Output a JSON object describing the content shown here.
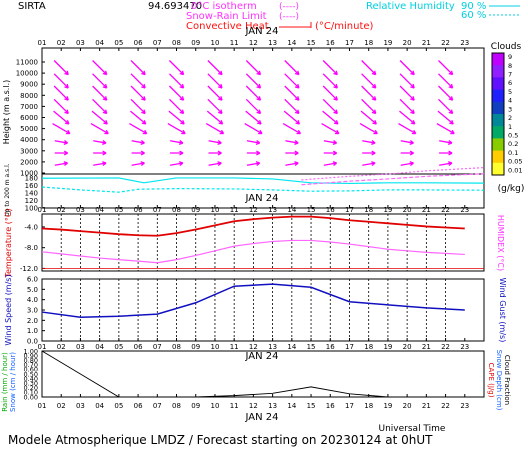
{
  "header": {
    "station": "SIRTA",
    "coord_value": "94.693470",
    "legend_isotherm": "0°C isotherm",
    "legend_isotherm_dash": "(----)",
    "legend_snowrain": "Snow-Rain Limit",
    "legend_snowrain_dash": "(----)",
    "legend_convective": "Convective Heat",
    "legend_convective_unit": "(°C/minute)",
    "legend_rh": "Relative Humidity",
    "rh_90": "90 %",
    "rh_60": "60 %"
  },
  "hours": [
    "01",
    "02",
    "03",
    "04",
    "05",
    "06",
    "07",
    "08",
    "09",
    "10",
    "11",
    "12",
    "13",
    "14",
    "15",
    "16",
    "17",
    "18",
    "19",
    "20",
    "21",
    "22",
    "23"
  ],
  "date_label": "JAN 24",
  "footer": {
    "universal_time": "Universal Time",
    "title": "Modele Atmospherique LMDZ / Forecast starting on 20230124 at 0hUT"
  },
  "colors": {
    "wind_arrow": "#ff00ff",
    "rh": "#00e5ee",
    "temperature": "#e00000",
    "humidex": "#ff66ff",
    "wind_speed": "#1010c0",
    "rain": "#000000",
    "clouds_scale": [
      "#ffff30",
      "#ffcc00",
      "#88cc00",
      "#00aa66",
      "#008899",
      "#1040c0",
      "#2020ff",
      "#6010ff",
      "#9020ff",
      "#c000ff"
    ]
  },
  "chart_data": [
    {
      "type": "heatmap",
      "title": "Clouds / Wind / Relative Humidity",
      "ylabel": "Height (m a.s.l.)",
      "ylabel_lower": "Up to 200 m a.s.l.",
      "yticks_upper": [
        "11000",
        "10000",
        "9000",
        "8000",
        "7000",
        "6000",
        "5000",
        "4000",
        "3000",
        "2000",
        "1000"
      ],
      "yticks_lower": [
        "180",
        "160",
        "140",
        "120",
        "100"
      ],
      "colorbar_title": "Clouds",
      "colorbar_unit": "(g/kg)",
      "colorbar_ticks": [
        "9",
        "8",
        "7",
        "6",
        "5",
        "4",
        "3",
        "2",
        "1",
        "0.5",
        "0.2",
        "0.1",
        "0.05",
        "0.01"
      ],
      "wind_levels_m": [
        10500,
        9300,
        8200,
        7000,
        6000,
        5000,
        3800,
        2800,
        1800
      ],
      "wind_hours": [
        2,
        4,
        6,
        8,
        10,
        12,
        14,
        16,
        18,
        20,
        22
      ],
      "wind_angle_deg": [
        135,
        135,
        135,
        135,
        140,
        150,
        170,
        180,
        190
      ],
      "rh_90_line": {
        "x": [
          0,
          4,
          5.3,
          7,
          10,
          12,
          14,
          16,
          18,
          20,
          23
        ],
        "y": [
          920,
          930,
          780,
          930,
          930,
          900,
          780,
          760,
          780,
          780,
          770
        ]
      },
      "rh_60_line": {
        "x": [
          0,
          2,
          4,
          5,
          7,
          10,
          12,
          14,
          16,
          18,
          20,
          23
        ],
        "y": [
          650,
          560,
          490,
          580,
          600,
          590,
          560,
          520,
          530,
          560,
          560,
          550
        ]
      },
      "isotherm_line": {
        "x": [
          13.5,
          16,
          18,
          20,
          23
        ],
        "y": [
          870,
          980,
          1050,
          1150,
          1250
        ]
      },
      "snowrain_line": {
        "x": [
          13.5,
          16,
          18,
          20,
          23
        ],
        "y": [
          720,
          830,
          900,
          980,
          1060
        ]
      }
    },
    {
      "type": "line",
      "ylabel": "Temperature (°C)",
      "ylabel_right": "HUMIDEX (°C)",
      "yticks": [
        "-4.0",
        "-8.0",
        "-12.0"
      ],
      "ylim": [
        -12.5,
        -1.5
      ],
      "x": [
        1,
        2,
        3,
        4,
        5,
        6,
        7,
        8,
        9,
        10,
        11,
        12,
        13,
        14,
        15,
        16,
        17,
        18,
        19,
        20,
        21,
        22,
        23
      ],
      "series": [
        {
          "name": "Temperature",
          "values": [
            -4.3,
            -4.5,
            -4.8,
            -5.1,
            -5.4,
            -5.6,
            -5.7,
            -5.2,
            -4.5,
            -3.7,
            -2.9,
            -2.5,
            -2.2,
            -2.0,
            -2.0,
            -2.3,
            -2.7,
            -3.0,
            -3.3,
            -3.6,
            -3.9,
            -4.1,
            -4.3
          ]
        },
        {
          "name": "Humidex",
          "values": [
            -8.8,
            -9.2,
            -9.6,
            -10.0,
            -10.3,
            -10.6,
            -10.9,
            -10.3,
            -9.5,
            -8.6,
            -7.7,
            -7.2,
            -6.8,
            -6.6,
            -6.6,
            -6.9,
            -7.3,
            -7.8,
            -8.3,
            -8.6,
            -8.9,
            -9.1,
            -9.3
          ]
        }
      ]
    },
    {
      "type": "line",
      "ylabel": "Wind Speed (m/s)",
      "ylabel_right": "Wind Gust (m/s)",
      "yticks": [
        "6.0",
        "5.0",
        "4.0",
        "3.0",
        "2.0",
        "1.0",
        "0.0"
      ],
      "ylim": [
        0,
        6
      ],
      "x": [
        1,
        3,
        5,
        7,
        9,
        11,
        13,
        15,
        17,
        19,
        21,
        23
      ],
      "series": [
        {
          "name": "Wind Speed",
          "values": [
            2.8,
            2.3,
            2.4,
            2.6,
            3.7,
            5.3,
            5.5,
            5.2,
            3.8,
            3.5,
            3.2,
            3.0
          ]
        }
      ]
    },
    {
      "type": "line",
      "ylabel_left": "Rain (mm / hour)",
      "ylabel_left2": "Snow (cm / hour)",
      "ylabel_right": "CAPE (J/g)",
      "ylabel_right2": "Snow Depth (cm)",
      "ylabel_right3": "Cloud Fraction",
      "yticks": [
        "1.00",
        "0.90",
        "0.80",
        "0.70",
        "0.60",
        "0.50",
        "0.40",
        "0.30",
        "0.20",
        "0.10",
        "0.00"
      ],
      "ylim": [
        0,
        1
      ],
      "series": [
        {
          "name": "Cloud Fraction",
          "x": [
            1,
            3,
            5,
            7,
            9,
            11,
            13,
            15,
            17,
            19,
            23
          ],
          "values": [
            1.0,
            0.5,
            0.0,
            0.0,
            0.0,
            0.03,
            0.08,
            0.22,
            0.07,
            0.0,
            0.0
          ]
        }
      ]
    }
  ]
}
